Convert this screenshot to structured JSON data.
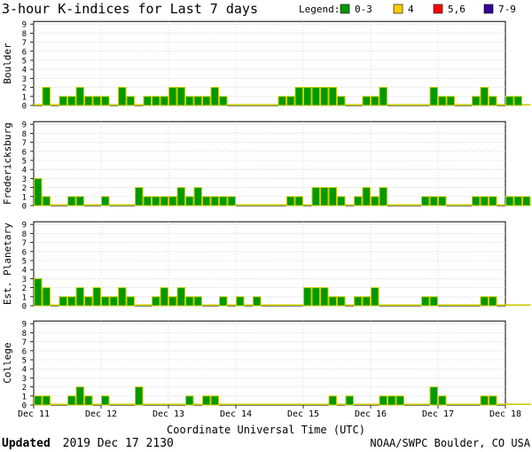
{
  "title": "3-hour K-indices for Last 7 days",
  "legend": {
    "label": "Legend:",
    "items": [
      {
        "label": "0-3",
        "color": "#009900"
      },
      {
        "label": "4",
        "color": "#ffcc00"
      },
      {
        "label": "5,6",
        "color": "#ff0000"
      },
      {
        "label": "7-9",
        "color": "#330099"
      }
    ]
  },
  "bar_outline_color": "#cccc00",
  "footer": {
    "updated_label": "Updated",
    "updated_value": "2019 Dec 17 2130",
    "source": "NOAA/SWPC Boulder, CO USA"
  },
  "chart_data": {
    "type": "bar",
    "x_axis_label": "Coordinate Universal Time (UTC)",
    "x_tick_labels": [
      "Dec 11",
      "Dec 12",
      "Dec 13",
      "Dec 14",
      "Dec 15",
      "Dec 16",
      "Dec 17",
      "Dec 18"
    ],
    "y_ticks": [
      0,
      1,
      2,
      3,
      4,
      5,
      6,
      7,
      8,
      9
    ],
    "ylim": [
      0,
      9
    ],
    "intervals_per_day": 8,
    "days": 7,
    "grid": true,
    "series": [
      {
        "name": "Boulder",
        "values": [
          0,
          2,
          0,
          1,
          1,
          2,
          1,
          1,
          1,
          0,
          2,
          1,
          0,
          1,
          1,
          1,
          2,
          2,
          1,
          1,
          1,
          2,
          1,
          0,
          0,
          0,
          0,
          0,
          0,
          1,
          1,
          2,
          2,
          2,
          2,
          2,
          1,
          0,
          0,
          1,
          1,
          2,
          0,
          0,
          0,
          0,
          0,
          2,
          1,
          1,
          0,
          0,
          1,
          2,
          1,
          0,
          1,
          1,
          0
        ]
      },
      {
        "name": "Fredericksburg",
        "values": [
          3,
          1,
          0,
          0,
          1,
          1,
          0,
          0,
          1,
          0,
          0,
          0,
          2,
          1,
          1,
          1,
          1,
          2,
          1,
          2,
          1,
          1,
          1,
          1,
          0,
          0,
          0,
          0,
          0,
          0,
          1,
          1,
          0,
          2,
          2,
          2,
          1,
          0,
          1,
          2,
          1,
          2,
          0,
          0,
          0,
          0,
          1,
          1,
          1,
          0,
          0,
          0,
          1,
          1,
          1,
          0,
          1,
          1,
          1
        ]
      },
      {
        "name": "Est. Planetary",
        "values": [
          3,
          2,
          0,
          1,
          1,
          2,
          1,
          2,
          1,
          1,
          2,
          1,
          0,
          0,
          1,
          2,
          1,
          2,
          1,
          1,
          0,
          0,
          1,
          0,
          1,
          0,
          1,
          0,
          0,
          0,
          0,
          0,
          2,
          2,
          2,
          1,
          1,
          0,
          1,
          1,
          2,
          0,
          0,
          0,
          0,
          0,
          1,
          1,
          0,
          0,
          0,
          0,
          0,
          1,
          1,
          0,
          0,
          0,
          0
        ]
      },
      {
        "name": "College",
        "values": [
          1,
          1,
          0,
          0,
          1,
          2,
          1,
          0,
          1,
          0,
          0,
          0,
          2,
          0,
          0,
          0,
          0,
          0,
          1,
          0,
          1,
          1,
          0,
          0,
          0,
          0,
          0,
          0,
          0,
          0,
          0,
          0,
          0,
          0,
          0,
          1,
          0,
          1,
          0,
          0,
          0,
          1,
          1,
          1,
          0,
          0,
          0,
          2,
          1,
          0,
          0,
          0,
          0,
          1,
          1,
          0,
          0,
          0,
          0
        ]
      }
    ]
  }
}
